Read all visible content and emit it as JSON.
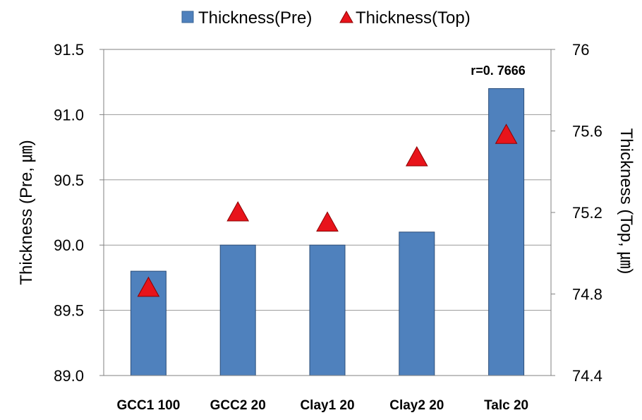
{
  "chart_data": {
    "type": "bar",
    "title": "",
    "categories": [
      "GCC1 100",
      "GCC2 20",
      "Clay1 20",
      "Clay2 20",
      "Talc 20"
    ],
    "series": [
      {
        "name": "Thickness(Pre)",
        "kind": "bar",
        "axis": "left",
        "color": "#4F81BD",
        "values": [
          89.8,
          90.0,
          90.0,
          90.1,
          91.2
        ]
      },
      {
        "name": "Thickness(Top)",
        "kind": "marker-triangle",
        "axis": "right",
        "color": "#E8141B",
        "values": [
          74.83,
          75.2,
          75.15,
          75.47,
          75.58
        ]
      }
    ],
    "ylabel": "Thickness (Pre, ㎛)",
    "y2label": "Thickness (Top, ㎛)",
    "xlabel": "",
    "ylim": [
      89.0,
      91.5
    ],
    "y2lim": [
      74.4,
      76.0
    ],
    "yticks": [
      "89.0",
      "89.5",
      "90.0",
      "90.5",
      "91.0",
      "91.5"
    ],
    "y2ticks": [
      "74.4",
      "74.8",
      "75.2",
      "75.6",
      "76"
    ],
    "grid": true,
    "legend_position": "top-center",
    "annotation": "r=0. 7666"
  }
}
